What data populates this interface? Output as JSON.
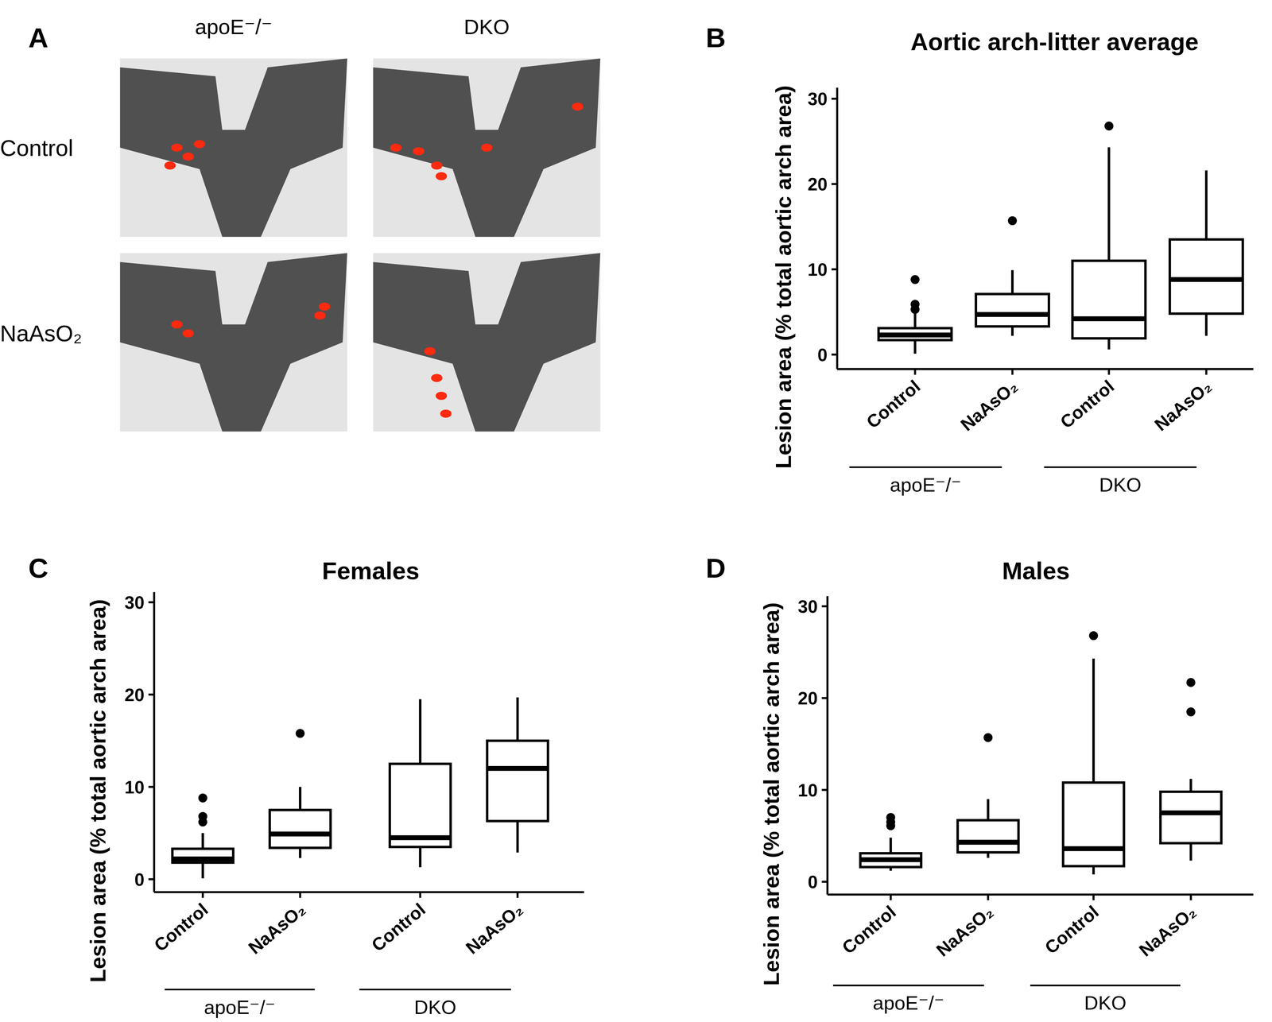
{
  "panel_a": {
    "label": "A",
    "columns": [
      "apoE⁻/⁻",
      "DKO"
    ],
    "rows": [
      "Control",
      "NaAsO₂"
    ]
  },
  "chart_data": [
    {
      "type": "box",
      "panel_label": "B",
      "title": "Aortic arch-litter average",
      "y_label": "Lesion area (% total aortic arch area)",
      "categories": [
        "Control",
        "NaAsO₂",
        "Control",
        "NaAsO₂"
      ],
      "groups": [
        "apoE⁻/⁻",
        "DKO"
      ],
      "ylim": [
        -1.7,
        31.3
      ],
      "yticks": [
        0,
        10,
        20,
        30
      ],
      "boxes": [
        {
          "min": 0.1,
          "q1": 1.7,
          "median": 2.3,
          "q3": 3.1,
          "max": 4.8,
          "outliers": [
            5.3,
            5.9,
            8.8
          ]
        },
        {
          "min": 2.2,
          "q1": 3.3,
          "median": 4.7,
          "q3": 7.1,
          "max": 9.9,
          "outliers": [
            15.7
          ]
        },
        {
          "min": 0.6,
          "q1": 1.9,
          "median": 4.2,
          "q3": 11,
          "max": 24.3,
          "outliers": [
            26.8
          ]
        },
        {
          "min": 2.2,
          "q1": 4.8,
          "median": 8.8,
          "q3": 13.5,
          "max": 21.6,
          "outliers": []
        }
      ]
    },
    {
      "type": "box",
      "panel_label": "C",
      "title": "Females",
      "y_label": "Lesion area (% total aortic arch area)",
      "categories": [
        "Control",
        "NaAsO₂",
        "Control",
        "NaAsO₂"
      ],
      "groups": [
        "apoE⁻/⁻",
        "DKO"
      ],
      "ylim": [
        -1.4,
        31.1
      ],
      "yticks": [
        0,
        10,
        20,
        30
      ],
      "boxes": [
        {
          "min": 0.1,
          "q1": 1.8,
          "median": 2.2,
          "q3": 3.3,
          "max": 5,
          "outliers": [
            6.2,
            6.8,
            8.8
          ]
        },
        {
          "min": 2.3,
          "q1": 3.4,
          "median": 4.9,
          "q3": 7.5,
          "max": 10,
          "outliers": [
            15.8
          ]
        },
        {
          "min": 1.3,
          "q1": 3.5,
          "median": 4.5,
          "q3": 12.5,
          "max": 19.5,
          "outliers": []
        },
        {
          "min": 2.9,
          "q1": 6.3,
          "median": 12,
          "q3": 15,
          "max": 19.7,
          "outliers": []
        }
      ]
    },
    {
      "type": "box",
      "panel_label": "D",
      "title": "Males",
      "y_label": "Lesion area (% total aortic arch area)",
      "categories": [
        "Control",
        "NaAsO₂",
        "Control",
        "NaAsO₂"
      ],
      "groups": [
        "apoE⁻/⁻",
        "DKO"
      ],
      "ylim": [
        -1.4,
        31.1
      ],
      "yticks": [
        0,
        10,
        20,
        30
      ],
      "boxes": [
        {
          "min": 1.2,
          "q1": 1.6,
          "median": 2.4,
          "q3": 3.1,
          "max": 4.8,
          "outliers": [
            6.1,
            6.5,
            7
          ]
        },
        {
          "min": 2.6,
          "q1": 3.2,
          "median": 4.3,
          "q3": 6.7,
          "max": 9,
          "outliers": [
            15.7
          ]
        },
        {
          "min": 0.8,
          "q1": 1.7,
          "median": 3.6,
          "q3": 10.8,
          "max": 24.3,
          "outliers": [
            26.8
          ]
        },
        {
          "min": 2.3,
          "q1": 4.2,
          "median": 7.5,
          "q3": 9.8,
          "max": 11.2,
          "outliers": [
            18.5,
            21.7
          ]
        }
      ]
    }
  ]
}
